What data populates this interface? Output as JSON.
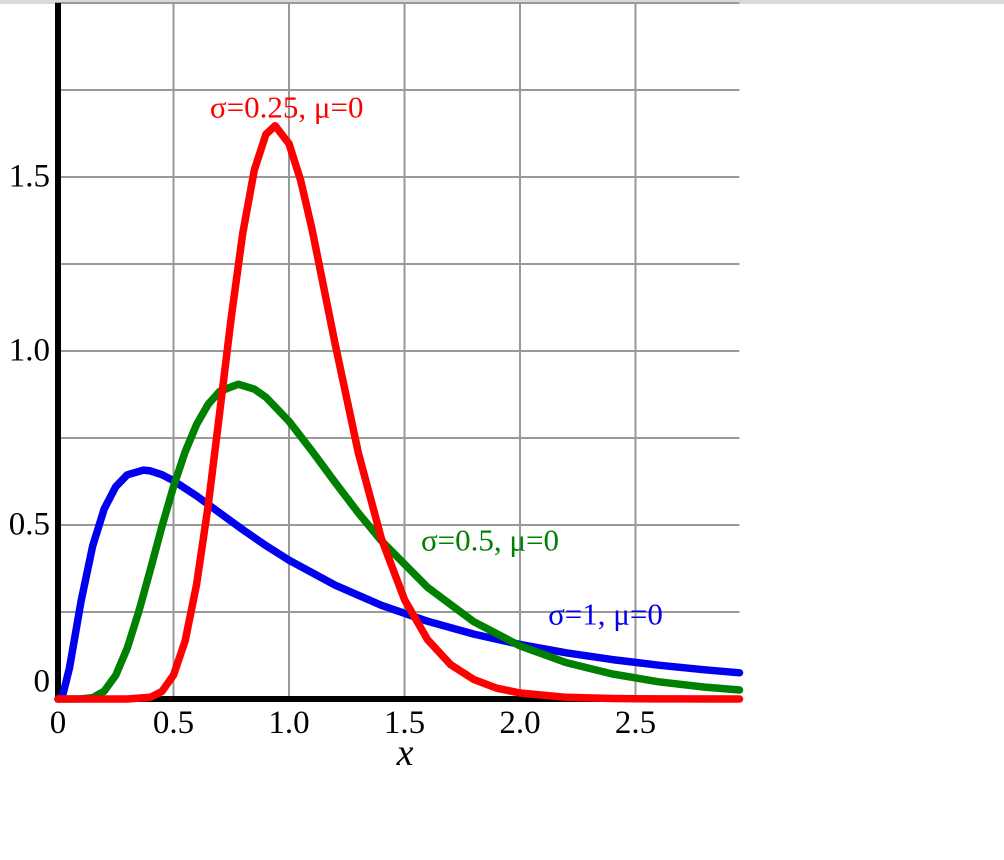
{
  "page": {
    "background_color": "#ffffff",
    "top_band_color": "#d9d9d9"
  },
  "chart_data": {
    "type": "line",
    "title": "",
    "xlabel": "x",
    "ylabel": "",
    "xlim": [
      0,
      2.95
    ],
    "ylim": [
      0,
      2.0
    ],
    "grid": true,
    "grid_color": "#999999",
    "axis_color": "#000000",
    "x_grid_step": 0.5,
    "y_grid_step": 0.25,
    "x_ticks": [
      {
        "value": 0,
        "label": "0"
      },
      {
        "value": 0.5,
        "label": "0.5"
      },
      {
        "value": 1.0,
        "label": "1.0"
      },
      {
        "value": 1.5,
        "label": "1.5"
      },
      {
        "value": 2.0,
        "label": "2.0"
      },
      {
        "value": 2.5,
        "label": "2.5"
      }
    ],
    "y_ticks": [
      {
        "value": 0,
        "label": "0"
      },
      {
        "value": 0.5,
        "label": "0.5"
      },
      {
        "value": 1.0,
        "label": "1.0"
      },
      {
        "value": 1.5,
        "label": "1.5"
      }
    ],
    "legend_position": "inline-annotations",
    "series": [
      {
        "name": "sigma-1",
        "label": "σ=1, μ=0",
        "color": "#0000ee",
        "label_anchor": {
          "x": 2.37,
          "y": 0.245
        },
        "x": [
          0,
          0.02,
          0.05,
          0.1,
          0.15,
          0.2,
          0.25,
          0.3,
          0.37,
          0.4,
          0.45,
          0.5,
          0.6,
          0.7,
          0.8,
          0.9,
          1.0,
          1.2,
          1.4,
          1.6,
          1.8,
          2.0,
          2.2,
          2.4,
          2.6,
          2.8,
          2.95
        ],
        "y": [
          0,
          0.0095,
          0.0896,
          0.2816,
          0.44,
          0.5462,
          0.6103,
          0.6442,
          0.6577,
          0.6554,
          0.6446,
          0.6274,
          0.5836,
          0.5348,
          0.4864,
          0.4408,
          0.3989,
          0.3269,
          0.2692,
          0.2233,
          0.1864,
          0.1569,
          0.1329,
          0.1133,
          0.0971,
          0.0838,
          0.0753
        ]
      },
      {
        "name": "sigma-0-5",
        "label": "σ=0.5, μ=0",
        "color": "#008000",
        "label_anchor": {
          "x": 1.87,
          "y": 0.457
        },
        "x": [
          0,
          0.1,
          0.15,
          0.2,
          0.25,
          0.3,
          0.35,
          0.4,
          0.45,
          0.5,
          0.55,
          0.6,
          0.65,
          0.7,
          0.78,
          0.85,
          0.9,
          1.0,
          1.1,
          1.2,
          1.3,
          1.4,
          1.6,
          1.8,
          2.0,
          2.2,
          2.4,
          2.6,
          2.8,
          2.95
        ],
        "y": [
          0,
          0.0002,
          0.004,
          0.0224,
          0.0684,
          0.1466,
          0.2515,
          0.3722,
          0.4954,
          0.6104,
          0.7099,
          0.7891,
          0.8469,
          0.8838,
          0.9046,
          0.8904,
          0.8671,
          0.7979,
          0.7122,
          0.6221,
          0.5348,
          0.4545,
          0.3206,
          0.2221,
          0.1526,
          0.1046,
          0.0718,
          0.0494,
          0.0342,
          0.026
        ]
      },
      {
        "name": "sigma-0-25",
        "label": "σ=0.25, μ=0",
        "color": "#ff0000",
        "label_anchor": {
          "x": 0.99,
          "y": 1.7
        },
        "x": [
          0,
          0.3,
          0.4,
          0.45,
          0.5,
          0.55,
          0.6,
          0.65,
          0.7,
          0.75,
          0.8,
          0.85,
          0.9,
          0.94,
          1.0,
          1.05,
          1.1,
          1.2,
          1.3,
          1.4,
          1.5,
          1.6,
          1.7,
          1.8,
          1.9,
          2.0,
          2.2,
          2.4,
          2.6,
          2.95
        ],
        "y": [
          0,
          0.0,
          0.0048,
          0.0216,
          0.0684,
          0.1663,
          0.3297,
          0.5563,
          0.8239,
          1.0974,
          1.3393,
          1.5199,
          1.6224,
          1.6475,
          1.5958,
          1.4911,
          1.349,
          1.0193,
          0.7077,
          0.4607,
          0.2855,
          0.1704,
          0.0987,
          0.0559,
          0.0311,
          0.0171,
          0.005,
          0.0014,
          0.0004,
          0.0001
        ]
      }
    ]
  }
}
